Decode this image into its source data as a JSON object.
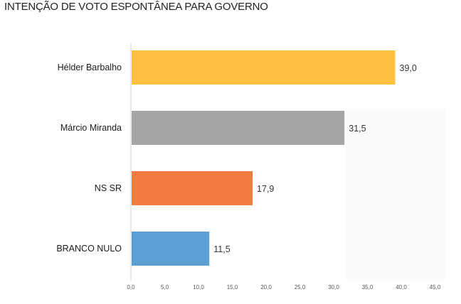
{
  "chart_data": {
    "type": "bar",
    "orientation": "horizontal",
    "title": "INTENÇÃO DE VOTO ESPONTÂNEA PARA GOVERNO",
    "categories": [
      "Hélder Barbalho",
      "Márcio Miranda",
      "NS SR",
      "BRANCO NULO"
    ],
    "values": [
      39.0,
      31.5,
      17.9,
      11.5
    ],
    "value_labels": [
      "39,0",
      "31,5",
      "17,9",
      "11,5"
    ],
    "colors": [
      "#FFC03F",
      "#A6A5A5",
      "#F07C41",
      "#5B9FD5"
    ],
    "xlim": [
      0,
      45
    ],
    "x_ticks": [
      0,
      5,
      10,
      15,
      20,
      25,
      30,
      35,
      40,
      45
    ],
    "x_tick_labels": [
      "0,0",
      "5,0",
      "10,0",
      "15,0",
      "20,0",
      "25,0",
      "30,0",
      "35,0",
      "40,0",
      "45,0"
    ],
    "grid": false,
    "legend": "none"
  }
}
